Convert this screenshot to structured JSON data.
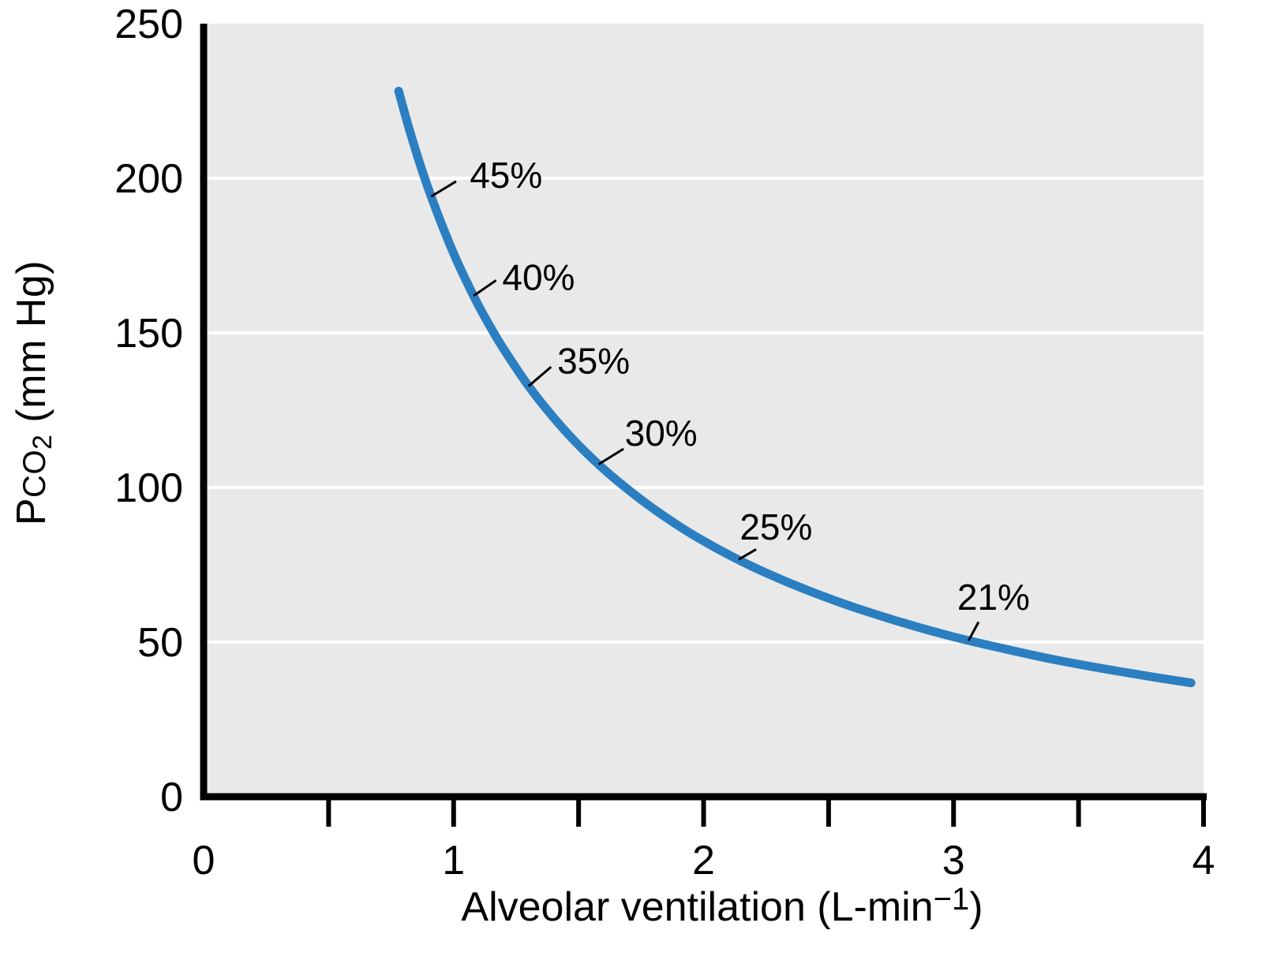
{
  "chart_data": {
    "type": "line",
    "title": "",
    "xlabel": "Alveolar ventilation (L-min⁻¹)",
    "ylabel": "PCO₂ (mm Hg)",
    "xlim": [
      0,
      4
    ],
    "ylim": [
      0,
      250
    ],
    "xtick_labels": [
      {
        "value": 0,
        "label": "0"
      },
      {
        "value": 1,
        "label": "1"
      },
      {
        "value": 2,
        "label": "2"
      },
      {
        "value": 3,
        "label": "3"
      },
      {
        "value": 4,
        "label": "4"
      }
    ],
    "xtick_marks": [
      0.5,
      1,
      1.5,
      2,
      2.5,
      3,
      3.5,
      4
    ],
    "ytick_labels": [
      {
        "value": 0,
        "label": "0"
      },
      {
        "value": 50,
        "label": "50"
      },
      {
        "value": 100,
        "label": "100"
      },
      {
        "value": 150,
        "label": "150"
      },
      {
        "value": 200,
        "label": "200"
      },
      {
        "value": 250,
        "label": "250"
      }
    ],
    "gridlines_y": [
      50,
      100,
      150,
      200
    ],
    "grid": "horizontal-white-on-gray",
    "legend": "none",
    "series": [
      {
        "name": "PCO2 vs alveolar ventilation",
        "points": [
          [
            0.78,
            228.2
          ],
          [
            0.82,
            216.6
          ],
          [
            0.86,
            206.0
          ],
          [
            0.9,
            196.4
          ],
          [
            0.95,
            185.6
          ],
          [
            1.0,
            175.7
          ],
          [
            1.05,
            166.9
          ],
          [
            1.1,
            158.8
          ],
          [
            1.15,
            151.5
          ],
          [
            1.2,
            144.8
          ],
          [
            1.3,
            132.8
          ],
          [
            1.4,
            122.6
          ],
          [
            1.5,
            113.7
          ],
          [
            1.6,
            106.0
          ],
          [
            1.7,
            99.2
          ],
          [
            1.8,
            93.1
          ],
          [
            1.9,
            87.6
          ],
          [
            2.0,
            82.7
          ],
          [
            2.15,
            76.2
          ],
          [
            2.3,
            70.6
          ],
          [
            2.45,
            65.7
          ],
          [
            2.6,
            61.3
          ],
          [
            2.8,
            56.2
          ],
          [
            3.0,
            51.7
          ],
          [
            3.2,
            47.9
          ],
          [
            3.4,
            44.4
          ],
          [
            3.6,
            41.4
          ],
          [
            3.8,
            38.7
          ],
          [
            3.95,
            36.8
          ]
        ]
      }
    ],
    "annotations": [
      {
        "label": "45%",
        "attach": [
          0.91,
          194.1
        ],
        "leader_end": [
          1.01,
          199.0
        ],
        "text_pos": [
          1.21,
          201.0
        ]
      },
      {
        "label": "40%",
        "attach": [
          1.08,
          162.0
        ],
        "leader_end": [
          1.17,
          167.0
        ],
        "text_pos": [
          1.34,
          168.0
        ]
      },
      {
        "label": "35%",
        "attach": [
          1.3,
          132.8
        ],
        "leader_end": [
          1.39,
          139.0
        ],
        "text_pos": [
          1.56,
          141.0
        ]
      },
      {
        "label": "30%",
        "attach": [
          1.58,
          107.5
        ],
        "leader_end": [
          1.68,
          112.5
        ],
        "text_pos": [
          1.83,
          117.6
        ]
      },
      {
        "label": "25%",
        "attach": [
          2.14,
          76.7
        ],
        "leader_end": [
          2.21,
          80.0
        ],
        "text_pos": [
          2.29,
          87.2
        ]
      },
      {
        "label": "21%",
        "attach": [
          3.06,
          50.5
        ],
        "leader_end": [
          3.1,
          56.5
        ],
        "text_pos": [
          3.16,
          64.5
        ]
      }
    ],
    "colors": {
      "curve": "#2b7fc1",
      "plot_background": "#e9e9e9",
      "gridline": "#ffffff",
      "axis": "#000000",
      "text": "#000000"
    }
  },
  "axes": {
    "y_title": {
      "prefix": "P",
      "smallcaps": "CO",
      "subscript": "2",
      "suffix": " (mm Hg)"
    },
    "x_title": {
      "main": "Alveolar ventilation (L-min",
      "superscript": "−1",
      "suffix": ")"
    }
  }
}
